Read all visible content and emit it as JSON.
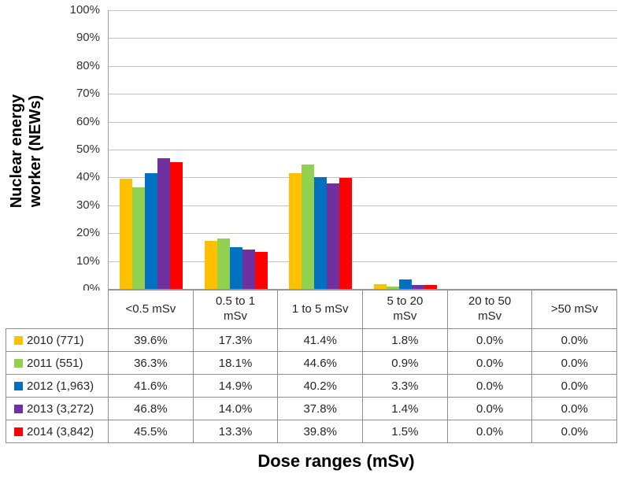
{
  "chart_data": {
    "type": "bar",
    "title": "",
    "xlabel": "Dose ranges (mSv)",
    "ylabel": "Nuclear energy worker (NEWs)",
    "ylabel_lines": "Nuclear energy\nworker (NEWs)",
    "ylim": [
      0,
      100
    ],
    "yticks": [
      "0%",
      "10%",
      "20%",
      "30%",
      "40%",
      "50%",
      "60%",
      "70%",
      "80%",
      "90%",
      "100%"
    ],
    "grid": true,
    "legend_position": "table-left-column",
    "categories": [
      "<0.5 mSv",
      "0.5 to 1 mSv",
      "1 to 5 mSv",
      "5 to 20 mSv",
      "20 to 50 mSv",
      ">50 mSv"
    ],
    "series": [
      {
        "name": "2010 (771)",
        "color": "#FFC000",
        "values": [
          39.6,
          17.3,
          41.4,
          1.8,
          0.0,
          0.0
        ]
      },
      {
        "name": "2011 (551)",
        "color": "#92D050",
        "values": [
          36.3,
          18.1,
          44.6,
          0.9,
          0.0,
          0.0
        ]
      },
      {
        "name": "2012 (1,963)",
        "color": "#0070C0",
        "values": [
          41.6,
          14.9,
          40.2,
          3.3,
          0.0,
          0.0
        ]
      },
      {
        "name": "2013 (3,272)",
        "color": "#7030A0",
        "values": [
          46.8,
          14.0,
          37.8,
          1.4,
          0.0,
          0.0
        ]
      },
      {
        "name": "2014 (3,842)",
        "color": "#FF0000",
        "values": [
          45.5,
          13.3,
          39.8,
          1.5,
          0.0,
          0.0
        ]
      }
    ]
  },
  "table": {
    "headers": [
      "<0.5 mSv",
      "0.5 to 1\nmSv",
      "1 to 5 mSv",
      "5 to 20\nmSv",
      "20 to 50\nmSv",
      ">50 mSv"
    ],
    "rows": [
      {
        "legend": "2010 (771)",
        "color": "#FFC000",
        "cells": [
          "39.6%",
          "17.3%",
          "41.4%",
          "1.8%",
          "0.0%",
          "0.0%"
        ]
      },
      {
        "legend": "2011 (551)",
        "color": "#92D050",
        "cells": [
          "36.3%",
          "18.1%",
          "44.6%",
          "0.9%",
          "0.0%",
          "0.0%"
        ]
      },
      {
        "legend": "2012 (1,963)",
        "color": "#0070C0",
        "cells": [
          "41.6%",
          "14.9%",
          "40.2%",
          "3.3%",
          "0.0%",
          "0.0%"
        ]
      },
      {
        "legend": "2013 (3,272)",
        "color": "#7030A0",
        "cells": [
          "46.8%",
          "14.0%",
          "37.8%",
          "1.4%",
          "0.0%",
          "0.0%"
        ]
      },
      {
        "legend": "2014 (3,842)",
        "color": "#FF0000",
        "cells": [
          "45.5%",
          "13.3%",
          "39.8%",
          "1.5%",
          "0.0%",
          "0.0%"
        ]
      }
    ]
  },
  "colors": {
    "grid": "#c3c3c3",
    "axis": "#9a9a9a",
    "table_border": "#8e8e8e",
    "text": "#262626"
  }
}
